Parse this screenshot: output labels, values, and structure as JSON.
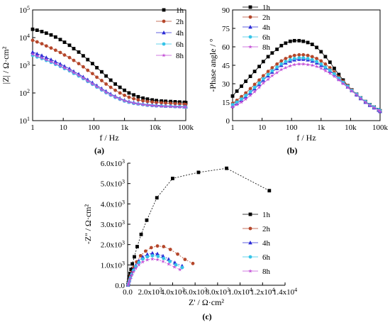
{
  "figure": {
    "panels": [
      {
        "id": "a",
        "label": "(a)"
      },
      {
        "id": "b",
        "label": "(b)"
      },
      {
        "id": "c",
        "label": "(c)"
      }
    ]
  },
  "colors": {
    "1h": "#000000",
    "2h": "#b5472b",
    "4h": "#2b2bd6",
    "6h": "#35c4e8",
    "8h": "#c34fd6"
  },
  "chart_data": [
    {
      "id": "a",
      "type": "line",
      "title": "",
      "xlabel": "f / Hz",
      "ylabel": "|Z| / Ω·cm²",
      "xscale": "log",
      "yscale": "log",
      "xlim": [
        1,
        100000
      ],
      "ylim": [
        10,
        100000
      ],
      "xticks": [
        {
          "v": 1,
          "label": "1"
        },
        {
          "v": 10,
          "label": "10"
        },
        {
          "v": 100,
          "label": "100"
        },
        {
          "v": 1000,
          "label": "1k"
        },
        {
          "v": 10000,
          "label": "10k"
        },
        {
          "v": 100000,
          "label": "100k"
        }
      ],
      "yticks": [
        {
          "v": 10,
          "label": "10",
          "sup": "1"
        },
        {
          "v": 100,
          "label": "10",
          "sup": "2"
        },
        {
          "v": 1000,
          "label": "10",
          "sup": "3"
        },
        {
          "v": 10000,
          "label": "10",
          "sup": "4"
        },
        {
          "v": 100000,
          "label": "10",
          "sup": "5"
        }
      ],
      "legend": "top-right",
      "x": [
        1,
        1.4,
        2,
        2.8,
        4,
        5.6,
        8,
        11,
        16,
        22,
        32,
        45,
        63,
        90,
        125,
        180,
        250,
        355,
        500,
        710,
        1000,
        1400,
        2000,
        2800,
        4000,
        5600,
        8000,
        11000,
        16000,
        22000,
        32000,
        45000,
        63000,
        90000,
        100000
      ],
      "series": [
        {
          "name": "1h",
          "marker": "square",
          "values": [
            20000,
            18500,
            16500,
            14500,
            12500,
            10500,
            8500,
            6800,
            5300,
            4000,
            3000,
            2200,
            1600,
            1150,
            820,
            580,
            410,
            290,
            210,
            160,
            125,
            100,
            85,
            73,
            65,
            60,
            56,
            53,
            51,
            50,
            49,
            48,
            47,
            46,
            45
          ]
        },
        {
          "name": "2h",
          "marker": "circle",
          "values": [
            8000,
            7000,
            6000,
            5000,
            4200,
            3500,
            2900,
            2350,
            1900,
            1500,
            1150,
            880,
            660,
            500,
            370,
            280,
            210,
            160,
            125,
            100,
            82,
            70,
            62,
            56,
            52,
            49,
            47,
            45,
            44,
            43,
            42,
            41,
            40,
            39,
            38
          ]
        },
        {
          "name": "4h",
          "marker": "triangle-up",
          "values": [
            3000,
            2600,
            2250,
            1900,
            1600,
            1350,
            1120,
            920,
            750,
            600,
            480,
            380,
            300,
            235,
            185,
            145,
            115,
            92,
            76,
            64,
            55,
            49,
            45,
            42,
            40,
            38,
            37,
            36,
            35,
            34,
            34,
            33,
            33,
            32,
            32
          ]
        },
        {
          "name": "6h",
          "marker": "circle",
          "values": [
            2300,
            2000,
            1750,
            1500,
            1280,
            1080,
            910,
            760,
            630,
            510,
            410,
            330,
            260,
            205,
            162,
            128,
            102,
            83,
            69,
            59,
            51,
            46,
            42,
            40,
            38,
            36,
            35,
            34,
            34,
            33,
            33,
            32,
            32,
            31,
            31
          ]
        },
        {
          "name": "8h",
          "marker": "star",
          "values": [
            2500,
            2150,
            1850,
            1580,
            1350,
            1140,
            960,
            800,
            660,
            540,
            430,
            345,
            270,
            212,
            168,
            132,
            105,
            85,
            71,
            60,
            52,
            47,
            43,
            40,
            38,
            36,
            35,
            34,
            33,
            33,
            32,
            32,
            31,
            31,
            31
          ]
        }
      ]
    },
    {
      "id": "b",
      "type": "line",
      "title": "",
      "xlabel": "f / Hz",
      "ylabel": "-Phase angle / °",
      "xscale": "log",
      "xlim": [
        1,
        100000
      ],
      "ylim": [
        0,
        90
      ],
      "xticks": [
        {
          "v": 1,
          "label": "1"
        },
        {
          "v": 10,
          "label": "10"
        },
        {
          "v": 100,
          "label": "100"
        },
        {
          "v": 1000,
          "label": "1k"
        },
        {
          "v": 10000,
          "label": "10k"
        },
        {
          "v": 100000,
          "label": "100k"
        }
      ],
      "yticks": [
        {
          "v": 0,
          "label": "0"
        },
        {
          "v": 15,
          "label": "15"
        },
        {
          "v": 30,
          "label": "30"
        },
        {
          "v": 45,
          "label": "45"
        },
        {
          "v": 60,
          "label": "60"
        },
        {
          "v": 75,
          "label": "75"
        },
        {
          "v": 90,
          "label": "90"
        }
      ],
      "legend": "top-right",
      "x": [
        1,
        1.4,
        2,
        2.8,
        4,
        5.6,
        8,
        11,
        16,
        22,
        32,
        45,
        63,
        90,
        125,
        180,
        250,
        355,
        500,
        710,
        1000,
        1400,
        2000,
        2800,
        4000,
        5600,
        8000,
        11000,
        16000,
        22000,
        32000,
        45000,
        63000,
        90000,
        100000
      ],
      "series": [
        {
          "name": "1h",
          "marker": "square",
          "values": [
            20,
            24,
            28,
            32,
            36,
            40,
            44,
            48,
            52,
            55,
            58,
            61,
            63,
            64.5,
            65,
            65,
            64.5,
            63.5,
            62,
            59.5,
            56,
            52,
            47.5,
            42.5,
            37.5,
            33,
            28.5,
            25,
            21.5,
            18.5,
            15.5,
            13,
            11,
            9,
            8
          ]
        },
        {
          "name": "2h",
          "marker": "circle",
          "values": [
            14,
            16.5,
            19.5,
            22.5,
            26,
            29.5,
            33,
            36.5,
            40,
            43,
            46,
            48.5,
            50.5,
            52,
            53,
            53.5,
            53.5,
            53,
            52,
            50.5,
            48.5,
            46,
            43,
            39.5,
            35.5,
            32,
            28.5,
            25,
            21.5,
            18.5,
            15.5,
            13,
            11,
            9,
            8
          ]
        },
        {
          "name": "4h",
          "marker": "triangle-up",
          "values": [
            12,
            14,
            16.5,
            19.5,
            22.5,
            26,
            29.5,
            33,
            36.5,
            39.5,
            42.5,
            45,
            47,
            48.5,
            49.5,
            50,
            50,
            49.5,
            48.5,
            47,
            45,
            43,
            40.5,
            37.5,
            34,
            31,
            27.5,
            24.5,
            21,
            18,
            15,
            12.5,
            10.5,
            8.5,
            7.5
          ]
        },
        {
          "name": "6h",
          "marker": "circle",
          "values": [
            13,
            15,
            17.5,
            20.5,
            23.5,
            27,
            30.5,
            34,
            37.5,
            40.5,
            43.5,
            46,
            48,
            49.5,
            50.5,
            51,
            51,
            50.5,
            49.5,
            48,
            46,
            43.5,
            41,
            38,
            34.5,
            31,
            28,
            24.5,
            21.5,
            18.5,
            15.5,
            13,
            11,
            9,
            8
          ]
        },
        {
          "name": "8h",
          "marker": "star",
          "values": [
            11,
            13,
            15,
            17.5,
            20.5,
            23.5,
            27,
            30.5,
            33.5,
            36.5,
            39,
            41.5,
            43,
            44.5,
            45.5,
            46,
            46,
            45.5,
            45,
            44,
            42.5,
            40.5,
            38.5,
            36,
            33,
            30,
            27,
            24,
            21,
            18,
            15,
            12.5,
            10.5,
            8.5,
            7.5
          ]
        }
      ]
    },
    {
      "id": "c",
      "type": "scatter",
      "title": "",
      "xlabel": "Z' / Ω·cm²",
      "ylabel": "-Z'' / Ω·cm²",
      "xlim": [
        0,
        14000
      ],
      "ylim": [
        0,
        6000
      ],
      "xticks": [
        {
          "v": 0,
          "label": "0.0"
        },
        {
          "v": 2000,
          "label": "2.0x10",
          "sup": "3"
        },
        {
          "v": 4000,
          "label": "4.0x10",
          "sup": "3"
        },
        {
          "v": 6000,
          "label": "6.0x10",
          "sup": "3"
        },
        {
          "v": 8000,
          "label": "8.0x10",
          "sup": "3"
        },
        {
          "v": 10000,
          "label": "1.0x10",
          "sup": "4"
        },
        {
          "v": 12000,
          "label": "1.2x10",
          "sup": "4"
        },
        {
          "v": 14000,
          "label": "1.4x10",
          "sup": "4"
        }
      ],
      "yticks": [
        {
          "v": 0,
          "label": "0.0"
        },
        {
          "v": 1000,
          "label": "1.0x10",
          "sup": "3"
        },
        {
          "v": 2000,
          "label": "2.0x10",
          "sup": "3"
        },
        {
          "v": 3000,
          "label": "3.0x10",
          "sup": "3"
        },
        {
          "v": 4000,
          "label": "4.0x10",
          "sup": "3"
        },
        {
          "v": 5000,
          "label": "5.0x10",
          "sup": "3"
        },
        {
          "v": 6000,
          "label": "6.0x10",
          "sup": "3"
        }
      ],
      "legend": "right",
      "series": [
        {
          "name": "1h",
          "marker": "square",
          "points": [
            [
              30,
              20
            ],
            [
              60,
              120
            ],
            [
              100,
              260
            ],
            [
              150,
              420
            ],
            [
              220,
              580
            ],
            [
              300,
              780
            ],
            [
              420,
              1050
            ],
            [
              600,
              1400
            ],
            [
              850,
              1900
            ],
            [
              1200,
              2500
            ],
            [
              1700,
              3200
            ],
            [
              2600,
              4300
            ],
            [
              4000,
              5250
            ],
            [
              6300,
              5550
            ],
            [
              8800,
              5750
            ],
            [
              12600,
              4650
            ]
          ]
        },
        {
          "name": "2h",
          "marker": "circle",
          "points": [
            [
              40,
              20
            ],
            [
              80,
              130
            ],
            [
              150,
              280
            ],
            [
              250,
              450
            ],
            [
              380,
              650
            ],
            [
              550,
              880
            ],
            [
              800,
              1150
            ],
            [
              1150,
              1450
            ],
            [
              1600,
              1680
            ],
            [
              2100,
              1850
            ],
            [
              2650,
              1930
            ],
            [
              3200,
              1900
            ],
            [
              3800,
              1760
            ],
            [
              4450,
              1530
            ],
            [
              5100,
              1270
            ],
            [
              5800,
              1070
            ]
          ]
        },
        {
          "name": "4h",
          "marker": "triangle-up",
          "points": [
            [
              40,
              20
            ],
            [
              80,
              110
            ],
            [
              150,
              240
            ],
            [
              240,
              400
            ],
            [
              360,
              580
            ],
            [
              520,
              780
            ],
            [
              730,
              980
            ],
            [
              1000,
              1200
            ],
            [
              1350,
              1390
            ],
            [
              1750,
              1520
            ],
            [
              2200,
              1580
            ],
            [
              2650,
              1550
            ],
            [
              3150,
              1440
            ],
            [
              3650,
              1280
            ],
            [
              4200,
              1110
            ],
            [
              4850,
              950
            ]
          ]
        },
        {
          "name": "6h",
          "marker": "circle",
          "points": [
            [
              40,
              20
            ],
            [
              80,
              100
            ],
            [
              150,
              220
            ],
            [
              240,
              370
            ],
            [
              360,
              540
            ],
            [
              520,
              730
            ],
            [
              730,
              920
            ],
            [
              1000,
              1120
            ],
            [
              1350,
              1290
            ],
            [
              1750,
              1400
            ],
            [
              2200,
              1450
            ],
            [
              2700,
              1420
            ],
            [
              3200,
              1320
            ],
            [
              3750,
              1170
            ],
            [
              4300,
              1000
            ],
            [
              4850,
              870
            ]
          ]
        },
        {
          "name": "8h",
          "marker": "star",
          "points": [
            [
              40,
              15
            ],
            [
              80,
              90
            ],
            [
              150,
              200
            ],
            [
              240,
              330
            ],
            [
              360,
              490
            ],
            [
              520,
              660
            ],
            [
              730,
              830
            ],
            [
              1000,
              1000
            ],
            [
              1350,
              1150
            ],
            [
              1750,
              1250
            ],
            [
              2200,
              1290
            ],
            [
              2650,
              1260
            ],
            [
              3150,
              1170
            ],
            [
              3650,
              1040
            ],
            [
              4150,
              900
            ],
            [
              4650,
              770
            ]
          ]
        }
      ]
    }
  ]
}
